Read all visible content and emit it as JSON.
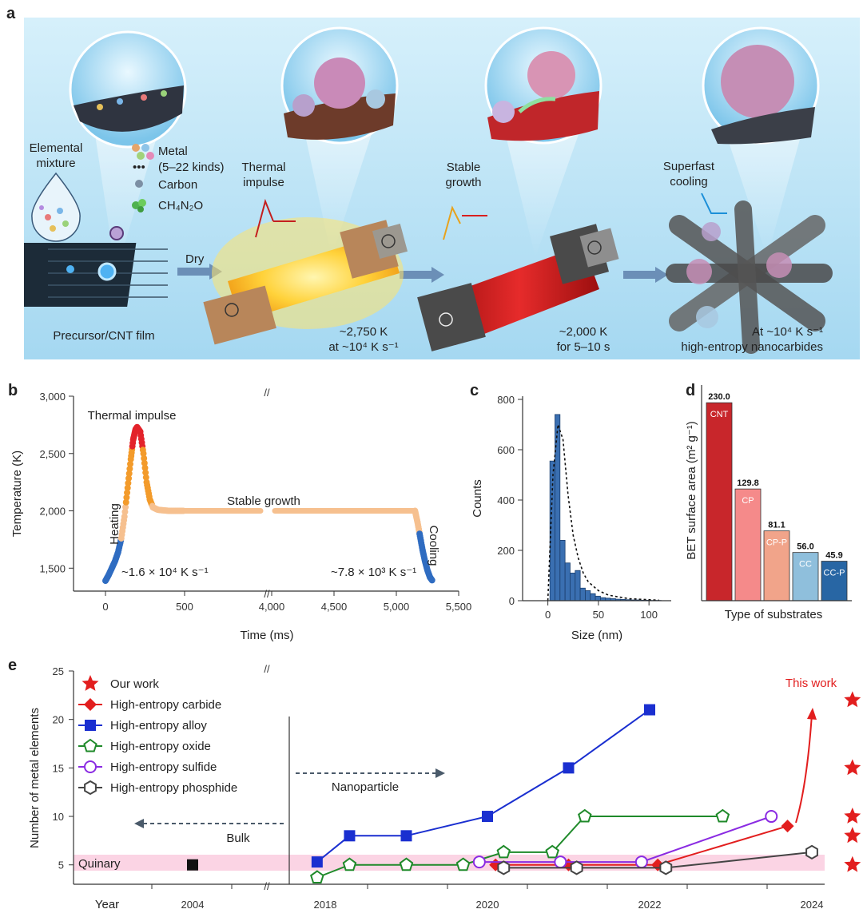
{
  "panel_letters": {
    "a": "a",
    "b": "b",
    "c": "c",
    "d": "d",
    "e": "e"
  },
  "panel_a": {
    "elemental_mixture": [
      "Elemental",
      "mixture"
    ],
    "legend": {
      "metal": "Metal",
      "metal_kinds": "(5–22 kinds)",
      "dots": "•••",
      "carbon": "Carbon",
      "ch4n2o": "CH₄N₂O"
    },
    "dry": "Dry",
    "precursor": "Precursor/CNT film",
    "thermal_impulse": [
      "Thermal",
      "impulse"
    ],
    "stable_growth": [
      "Stable",
      "growth"
    ],
    "superfast_cooling": [
      "Superfast",
      "cooling"
    ],
    "step2_caption": [
      "~2,750 K",
      "at ~10⁴ K s⁻¹"
    ],
    "step3_caption": [
      "~2,000 K",
      "for 5–10 s"
    ],
    "step4_caption": [
      "At ~10⁴ K s⁻¹",
      "high-entropy nanocarbides"
    ],
    "colors": {
      "background_top": "#cfeefb",
      "background_bottom": "#9fd6f1",
      "glow": "#ffd84a",
      "red_film": "#d81f1f",
      "film": "#1c2b38"
    }
  },
  "chart_data": [
    {
      "type": "line",
      "panel": "b",
      "xlabel": "Time (ms)",
      "ylabel": "Temperature (K)",
      "ylim": [
        1300,
        3000
      ],
      "yticks": [
        "1,500",
        "2,000",
        "2,500",
        "3,000"
      ],
      "xticks": [
        "0",
        "500",
        "4,000",
        "4,500",
        "5,000",
        "5,500"
      ],
      "axis_break": "//",
      "annotations": {
        "thermal_impulse": "Thermal impulse",
        "heating": "Heating",
        "heating_rate": "~1.6 × 10⁴ K s⁻¹",
        "stable_growth": "Stable growth",
        "cooling": "Cooling",
        "cooling_rate": "~7.8 × 10³ K s⁻¹"
      },
      "segments": [
        {
          "name": "heating",
          "x": [
            0,
            20,
            40,
            60,
            80,
            100,
            120,
            140,
            160,
            175,
            190,
            200
          ],
          "y": [
            1390,
            1440,
            1500,
            1560,
            1640,
            1760,
            1950,
            2200,
            2450,
            2620,
            2710,
            2730
          ]
        },
        {
          "name": "peak",
          "x": [
            200,
            220,
            240,
            260,
            280,
            300,
            330,
            360,
            400,
            450,
            500
          ],
          "y": [
            2730,
            2690,
            2500,
            2250,
            2100,
            2030,
            2010,
            2005,
            2000,
            2000,
            2000
          ]
        },
        {
          "name": "stable",
          "x": [
            500,
            4000,
            5150
          ],
          "y": [
            2000,
            2000,
            2000
          ]
        },
        {
          "name": "cooling",
          "x": [
            5150,
            5170,
            5190,
            5210,
            5230,
            5250,
            5270,
            5290
          ],
          "y": [
            2000,
            1900,
            1780,
            1660,
            1560,
            1480,
            1420,
            1390
          ]
        }
      ],
      "colors": {
        "hot": "#e3232b",
        "warm": "#f39b2b",
        "stable": "#f6c08f",
        "cool": "#2f6cc1"
      }
    },
    {
      "type": "bar",
      "panel": "c",
      "xlabel": "Size (nm)",
      "ylabel": "Counts",
      "ylim": [
        0,
        800
      ],
      "xlim": [
        -25,
        122
      ],
      "yticks": [
        "0",
        "200",
        "400",
        "600",
        "800"
      ],
      "xticks": [
        "0",
        "50",
        "100"
      ],
      "bin_width": 5,
      "bin_starts": [
        2,
        7,
        12,
        17,
        22,
        27,
        32,
        37,
        42,
        47,
        52,
        57,
        62,
        67,
        72,
        77,
        82,
        87,
        92,
        97,
        102,
        107
      ],
      "values": [
        555,
        740,
        240,
        150,
        110,
        120,
        50,
        40,
        28,
        18,
        12,
        10,
        8,
        6,
        5,
        4,
        3,
        3,
        2,
        2,
        1,
        1
      ],
      "fit_x": [
        0,
        5,
        10,
        15,
        20,
        25,
        30,
        35,
        40,
        50,
        60,
        80,
        110
      ],
      "fit_y": [
        0,
        500,
        700,
        640,
        420,
        260,
        170,
        110,
        75,
        40,
        22,
        8,
        2
      ],
      "color": "#3a6fb1"
    },
    {
      "type": "bar",
      "panel": "d",
      "xlabel": "Type of substrates",
      "ylabel": "BET surface area (m² g⁻¹)",
      "ylim": [
        0,
        245
      ],
      "categories": [
        "CNT",
        "CP",
        "CP-P",
        "CC",
        "CC-P"
      ],
      "values": [
        230.0,
        129.8,
        81.1,
        56.0,
        45.9
      ],
      "value_labels": [
        "230.0",
        "129.8",
        "81.1",
        "56.0",
        "45.9"
      ],
      "colors": [
        "#c8262b",
        "#f58a8a",
        "#f1a48a",
        "#8fbfdc",
        "#2866a4"
      ]
    },
    {
      "type": "line",
      "panel": "e",
      "xlabel": "Year",
      "ylabel": "Number of metal elements",
      "ylim": [
        3,
        25
      ],
      "yticks": [
        "5",
        "10",
        "15",
        "20",
        "25"
      ],
      "xticks": [
        "2004",
        "2018",
        "2020",
        "2022",
        "2024"
      ],
      "axis_break": "//",
      "bulk_label": "Bulk",
      "nanoparticle_label": "Nanoparticle",
      "quinary_label": "Quinary",
      "this_work_label": "This work",
      "series": [
        {
          "name": "Our work",
          "marker": "star",
          "color": "#e21e1e",
          "x": [
            2024.5,
            2024.5,
            2024.5,
            2024.5,
            2024.5
          ],
          "y": [
            22,
            15,
            10,
            8,
            5
          ]
        },
        {
          "name": "High-entropy carbide",
          "marker": "diamond",
          "color": "#e21e1e",
          "x": [
            2020.1,
            2021.0,
            2022.1,
            2023.7
          ],
          "y": [
            5,
            5,
            5,
            9
          ]
        },
        {
          "name": "High-entropy alloy",
          "marker": "square",
          "color": "#1a2fd0",
          "x": [
            2017.9,
            2018.3,
            2019.0,
            2020.0,
            2021.0,
            2022.0
          ],
          "y": [
            5.3,
            8,
            8,
            10,
            15,
            21
          ]
        },
        {
          "name": "High-entropy oxide",
          "marker": "pentagon",
          "color": "#1f8a2a",
          "x": [
            2017.9,
            2018.3,
            2019.0,
            2019.7,
            2020.2,
            2020.8,
            2021.2,
            2022.9
          ],
          "y": [
            3.7,
            5,
            5,
            5,
            6.3,
            6.3,
            10,
            10
          ]
        },
        {
          "name": "High-entropy sulfide",
          "marker": "circle",
          "color": "#8a2be2",
          "x": [
            2019.9,
            2020.9,
            2021.9,
            2023.5
          ],
          "y": [
            5.3,
            5.3,
            5.3,
            10
          ]
        },
        {
          "name": "High-entropy phosphide",
          "marker": "hexagon",
          "color": "#444444",
          "x": [
            2020.2,
            2021.1,
            2022.2,
            2024.0
          ],
          "y": [
            4.7,
            4.7,
            4.7,
            6.3
          ]
        },
        {
          "name": "Bulk (2004)",
          "marker": "filled-square",
          "color": "#111111",
          "x": [
            2004
          ],
          "y": [
            5
          ]
        }
      ]
    }
  ]
}
